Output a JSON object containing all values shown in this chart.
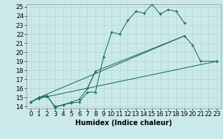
{
  "xlabel": "Humidex (Indice chaleur)",
  "background_color": "#cce9e9",
  "grid_color": "#aad0d0",
  "line_color": "#1e6e64",
  "xlim": [
    0,
    23
  ],
  "ylim": [
    14,
    25
  ],
  "xticks": [
    0,
    1,
    2,
    3,
    4,
    5,
    6,
    7,
    8,
    9,
    10,
    11,
    12,
    13,
    14,
    15,
    16,
    17,
    18,
    19,
    20,
    21,
    22,
    23
  ],
  "yticks": [
    14,
    15,
    16,
    17,
    18,
    19,
    20,
    21,
    22,
    23,
    24,
    25
  ],
  "series": [
    {
      "x": [
        0,
        1,
        2,
        3,
        4,
        5,
        6,
        7,
        8,
        9,
        10,
        11,
        12,
        13,
        14,
        15,
        16,
        17,
        18,
        19
      ],
      "y": [
        14.5,
        15.0,
        15.2,
        13.9,
        14.2,
        14.4,
        14.5,
        15.6,
        15.6,
        19.5,
        22.2,
        22.0,
        23.5,
        24.5,
        24.3,
        25.3,
        24.2,
        24.7,
        24.5,
        23.2
      ],
      "markers": true
    },
    {
      "x": [
        0,
        1,
        2,
        3,
        4,
        5,
        6,
        7,
        8
      ],
      "y": [
        14.5,
        15.0,
        15.2,
        14.0,
        14.2,
        14.5,
        14.8,
        16.0,
        17.9
      ],
      "markers": true
    },
    {
      "x": [
        7,
        8
      ],
      "y": [
        16.0,
        17.9
      ],
      "markers": false
    },
    {
      "x": [
        19,
        20,
        21,
        23
      ],
      "y": [
        21.8,
        20.8,
        19.0,
        19.0
      ],
      "markers": true
    },
    {
      "comment": "diagonal line from x=8 y=17.9 to x=19 y=21.8",
      "x": [
        8,
        19
      ],
      "y": [
        17.9,
        21.8
      ],
      "markers": false
    },
    {
      "x": [
        0,
        1,
        2,
        23
      ],
      "y": [
        14.5,
        14.9,
        15.1,
        19.0
      ],
      "markers": true
    },
    {
      "x": [
        1,
        19
      ],
      "y": [
        15.0,
        21.8
      ],
      "markers": false
    }
  ],
  "figsize": [
    3.2,
    2.0
  ],
  "dpi": 100,
  "font_size": 6.5
}
